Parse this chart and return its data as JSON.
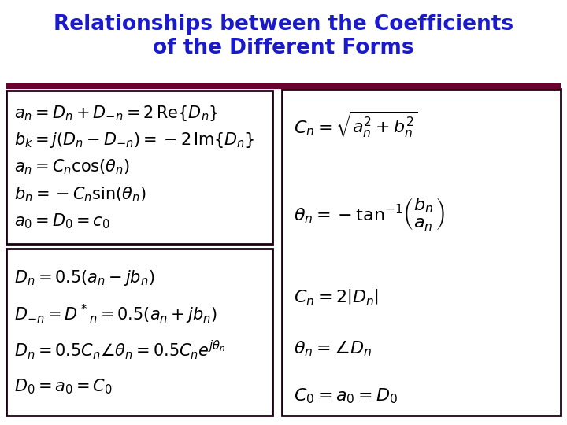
{
  "title_line1": "Relationships between the Coefficients",
  "title_line2": "of the Different Forms",
  "title_color": "#1a1acc",
  "title_fontsize": 19,
  "background_color": "#ffffff",
  "divider_color": "#6b0030",
  "box_color": "#1a0010",
  "eq_color": "#000000",
  "eq_fontsize": 15,
  "box1_equations": [
    "$a_n = D_n + D_{-n} = 2\\,\\mathrm{Re}\\{D_n\\}$",
    "$b_k = j(D_n - D_{-n})= -2\\,\\mathrm{Im}\\{D_n\\}$",
    "$a_n = C_n \\cos(\\theta_n)$",
    "$b_n = -C_n \\sin(\\theta_n)$",
    "$a_0 = D_0 = c_0$"
  ],
  "box2_equations": [
    "$D_n = 0.5(a_n - jb_n)$",
    "$D_{-n} = D^*{}_n = 0.5(a_n + jb_n)$",
    "$D_n = 0.5C_n\\angle\\theta_n = 0.5C_n e^{j\\theta_n}$",
    "$D_0 = a_0 = C_0$"
  ],
  "box3_equations": [
    "$C_n = \\sqrt{a_n^{2} + b_n^{2}}$",
    "$\\theta_n = -\\tan^{-1}\\!\\left(\\dfrac{b_n}{a_n}\\right)$",
    "$C_n = 2\\left|D_n\\right|$",
    "$\\theta_n = \\angle D_n$",
    "$C_0 = a_0 = D_0$"
  ],
  "figwidth": 7.2,
  "figheight": 5.4,
  "dpi": 100
}
